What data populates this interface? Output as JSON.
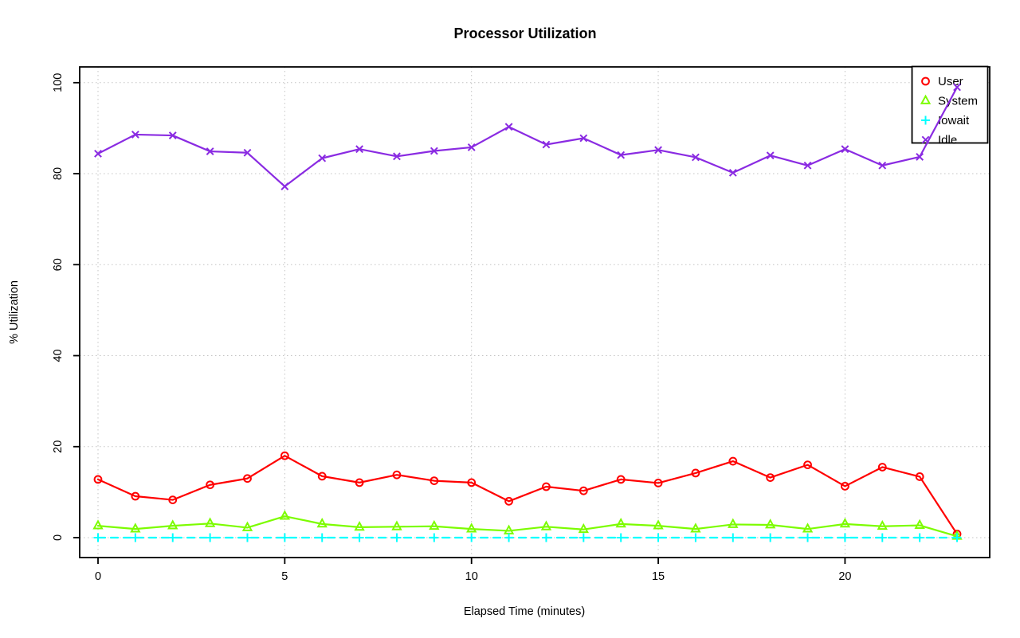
{
  "chart_data": {
    "type": "line",
    "title": "Processor Utilization",
    "xlabel": "Elapsed Time (minutes)",
    "ylabel": "% Utilization",
    "x": [
      0,
      1,
      2,
      3,
      4,
      5,
      6,
      7,
      8,
      9,
      10,
      11,
      12,
      13,
      14,
      15,
      16,
      17,
      18,
      19,
      20,
      21,
      22,
      23
    ],
    "xticks": [
      0,
      5,
      10,
      15,
      20
    ],
    "yticks": [
      0,
      20,
      40,
      60,
      80,
      100
    ],
    "xlim": [
      -0.9,
      23.9
    ],
    "ylim": [
      -4,
      104
    ],
    "grid": true,
    "grid_style": "dotted",
    "background": "#ffffff",
    "box_color": "#000000",
    "grid_color": "#c3c3c3",
    "legend": {
      "position": "topright",
      "entries": [
        "User",
        "System",
        "Iowait",
        "Idle"
      ]
    },
    "series": [
      {
        "name": "User",
        "color": "#ff0000",
        "marker": "circle",
        "linestyle": "solid",
        "values": [
          12.8,
          9.1,
          8.3,
          11.6,
          13.0,
          18.0,
          13.5,
          12.1,
          13.8,
          12.5,
          12.1,
          8.0,
          11.2,
          10.3,
          12.8,
          12.0,
          14.2,
          16.8,
          13.2,
          16.0,
          11.3,
          15.5,
          13.4,
          0.8
        ]
      },
      {
        "name": "System",
        "color": "#7cfc00",
        "marker": "triangle",
        "linestyle": "solid",
        "values": [
          2.6,
          1.9,
          2.6,
          3.1,
          2.2,
          4.7,
          3.0,
          2.3,
          2.4,
          2.5,
          1.9,
          1.5,
          2.4,
          1.8,
          3.0,
          2.6,
          1.9,
          2.9,
          2.8,
          1.9,
          3.0,
          2.5,
          2.7,
          0.3
        ]
      },
      {
        "name": "Iowait",
        "color": "#00ffff",
        "marker": "plus",
        "linestyle": "dashed",
        "values": [
          0,
          0,
          0,
          0,
          0,
          0,
          0,
          0,
          0,
          0,
          0,
          0,
          0,
          0,
          0,
          0,
          0,
          0,
          0,
          0,
          0,
          0,
          0,
          0
        ]
      },
      {
        "name": "Idle",
        "color": "#8a2be2",
        "marker": "x",
        "linestyle": "solid",
        "values": [
          84.4,
          88.6,
          88.4,
          84.9,
          84.6,
          77.2,
          83.4,
          85.4,
          83.8,
          85.0,
          85.8,
          90.3,
          86.4,
          87.8,
          84.1,
          85.2,
          83.6,
          80.2,
          84.0,
          81.8,
          85.4,
          81.8,
          83.7,
          99.0
        ]
      }
    ]
  }
}
